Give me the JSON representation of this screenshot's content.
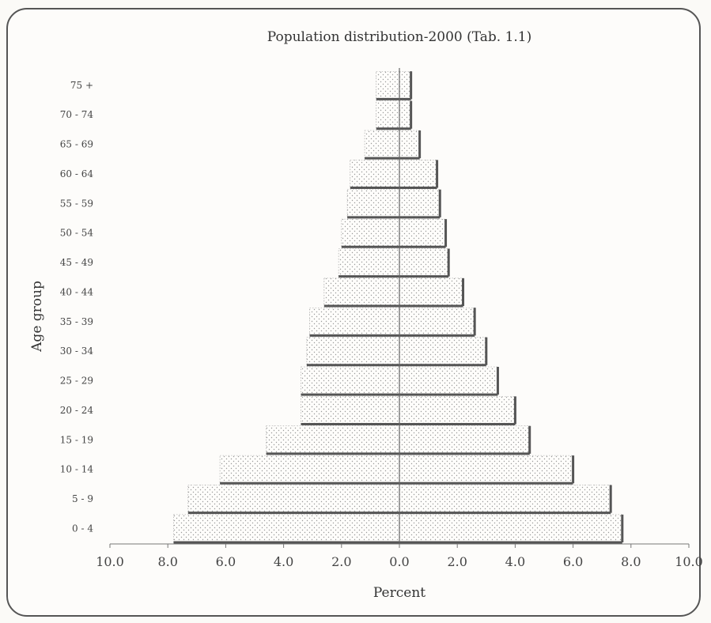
{
  "chart_data": {
    "type": "bar",
    "orientation": "horizontal",
    "variant": "population-pyramid",
    "title": "Population distribution-2000 (Tab. 1.1)",
    "xlabel": "Percent",
    "ylabel": "Age group",
    "categories": [
      "0 - 4",
      "5 - 9",
      "10 - 14",
      "15 - 19",
      "20 - 24",
      "25 - 29",
      "30 - 34",
      "35 - 39",
      "40 - 44",
      "45 - 49",
      "50 - 54",
      "55 - 59",
      "60 - 64",
      "65 - 69",
      "70 - 74",
      "75 +"
    ],
    "series": [
      {
        "side": "left",
        "values": [
          7.8,
          7.3,
          6.2,
          4.6,
          3.4,
          3.4,
          3.2,
          3.1,
          2.6,
          2.1,
          2.0,
          1.8,
          1.7,
          1.2,
          0.8,
          0.8
        ]
      },
      {
        "side": "right",
        "values": [
          7.7,
          7.3,
          6.0,
          4.5,
          4.0,
          3.4,
          3.0,
          2.6,
          2.2,
          1.7,
          1.6,
          1.4,
          1.3,
          0.7,
          0.4,
          0.4
        ]
      }
    ],
    "xlim": [
      -10,
      10
    ],
    "x_ticks": [
      "10.0",
      "8.0",
      "6.0",
      "4.0",
      "2.0",
      "0.0",
      "2.0",
      "4.0",
      "6.0",
      "8.0",
      "10.0"
    ],
    "grid": false,
    "bar_fill": "dotted",
    "colors": {
      "bar_fill": "#fefdfb",
      "bar_shadow": "#555555",
      "dots": "#9a9a9a"
    }
  }
}
